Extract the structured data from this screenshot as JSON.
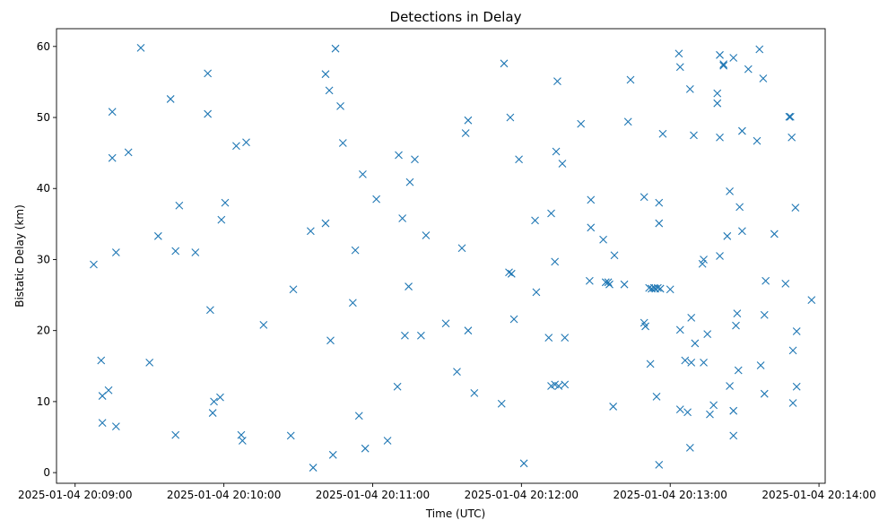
{
  "chart_data": {
    "type": "scatter",
    "title": "Detections in Delay",
    "xlabel": "Time (UTC)",
    "ylabel": "Bistatic Delay (km)",
    "marker": "x",
    "color": "#1f77b4",
    "grid": false,
    "legend": "none",
    "xlim": [
      -7.5,
      302.5
    ],
    "ylim": [
      -1.5,
      62.5
    ],
    "x_ticks": [
      {
        "value": 0,
        "label": "2025-01-04 20:09:00"
      },
      {
        "value": 60,
        "label": "2025-01-04 20:10:00"
      },
      {
        "value": 120,
        "label": "2025-01-04 20:11:00"
      },
      {
        "value": 180,
        "label": "2025-01-04 20:12:00"
      },
      {
        "value": 240,
        "label": "2025-01-04 20:13:00"
      },
      {
        "value": 300,
        "label": "2025-01-04 20:14:00"
      }
    ],
    "y_ticks": [
      {
        "value": 0,
        "label": "0"
      },
      {
        "value": 10,
        "label": "10"
      },
      {
        "value": 20,
        "label": "20"
      },
      {
        "value": 30,
        "label": "30"
      },
      {
        "value": 40,
        "label": "40"
      },
      {
        "value": 50,
        "label": "50"
      },
      {
        "value": 60,
        "label": "60"
      }
    ],
    "x_unit": "seconds after 2025-01-04 20:09:00 UTC",
    "points": [
      [
        7.5,
        29.3
      ],
      [
        10.5,
        15.8
      ],
      [
        11,
        10.8
      ],
      [
        11,
        7
      ],
      [
        13.5,
        11.6
      ],
      [
        15,
        50.8
      ],
      [
        15,
        44.3
      ],
      [
        16.5,
        31
      ],
      [
        16.5,
        6.5
      ],
      [
        21.5,
        45.1
      ],
      [
        26.5,
        59.8
      ],
      [
        30,
        15.5
      ],
      [
        33.5,
        33.3
      ],
      [
        38.5,
        52.6
      ],
      [
        40.5,
        31.2
      ],
      [
        40.5,
        5.3
      ],
      [
        42,
        37.6
      ],
      [
        48.5,
        31
      ],
      [
        53.5,
        56.2
      ],
      [
        53.5,
        50.5
      ],
      [
        54.5,
        22.9
      ],
      [
        55.5,
        8.4
      ],
      [
        56,
        10
      ],
      [
        58.5,
        10.6
      ],
      [
        59,
        35.6
      ],
      [
        60.5,
        38
      ],
      [
        65,
        46
      ],
      [
        67,
        5.3
      ],
      [
        67.5,
        4.5
      ],
      [
        69,
        46.5
      ],
      [
        76,
        20.8
      ],
      [
        87,
        5.2
      ],
      [
        88,
        25.8
      ],
      [
        95,
        34
      ],
      [
        96,
        0.7
      ],
      [
        101,
        56.1
      ],
      [
        101,
        35.1
      ],
      [
        102.5,
        53.8
      ],
      [
        103,
        18.6
      ],
      [
        104,
        2.5
      ],
      [
        105,
        59.7
      ],
      [
        107,
        51.6
      ],
      [
        108,
        46.4
      ],
      [
        112,
        23.9
      ],
      [
        113,
        31.3
      ],
      [
        114.5,
        8
      ],
      [
        116,
        42
      ],
      [
        117,
        3.4
      ],
      [
        121.5,
        38.5
      ],
      [
        126,
        4.5
      ],
      [
        130,
        12.1
      ],
      [
        130.5,
        44.7
      ],
      [
        132,
        35.8
      ],
      [
        133,
        19.3
      ],
      [
        134.5,
        26.2
      ],
      [
        135,
        40.9
      ],
      [
        137,
        44.1
      ],
      [
        139.5,
        19.3
      ],
      [
        141.5,
        33.4
      ],
      [
        149.5,
        21
      ],
      [
        154,
        14.2
      ],
      [
        156,
        31.6
      ],
      [
        157.5,
        47.8
      ],
      [
        158.5,
        49.6
      ],
      [
        158.5,
        20
      ],
      [
        161,
        11.2
      ],
      [
        172,
        9.7
      ],
      [
        173,
        57.6
      ],
      [
        175,
        28.2
      ],
      [
        175.5,
        50
      ],
      [
        176,
        28
      ],
      [
        177,
        21.6
      ],
      [
        179,
        44.1
      ],
      [
        181,
        1.3
      ],
      [
        185.5,
        35.5
      ],
      [
        186,
        25.4
      ],
      [
        191,
        19
      ],
      [
        192,
        36.5
      ],
      [
        192,
        12.2
      ],
      [
        193.5,
        12.4
      ],
      [
        193.5,
        29.7
      ],
      [
        194,
        45.2
      ],
      [
        194.5,
        55.1
      ],
      [
        195,
        12.2
      ],
      [
        196.5,
        43.5
      ],
      [
        197.5,
        19
      ],
      [
        197.5,
        12.4
      ],
      [
        204,
        49.1
      ],
      [
        207.5,
        27
      ],
      [
        208,
        38.4
      ],
      [
        208,
        34.5
      ],
      [
        213,
        32.8
      ],
      [
        214,
        26.8
      ],
      [
        215,
        26.8
      ],
      [
        215.5,
        26.5
      ],
      [
        217,
        9.3
      ],
      [
        217.5,
        30.6
      ],
      [
        221.5,
        26.5
      ],
      [
        223,
        49.4
      ],
      [
        224,
        55.3
      ],
      [
        229.5,
        38.8
      ],
      [
        229.5,
        21.1
      ],
      [
        230,
        20.6
      ],
      [
        231.5,
        26
      ],
      [
        232,
        15.3
      ],
      [
        232.5,
        25.9
      ],
      [
        233.5,
        26
      ],
      [
        234,
        25.9
      ],
      [
        234.5,
        10.7
      ],
      [
        235,
        26
      ],
      [
        235.5,
        38
      ],
      [
        235.5,
        35.1
      ],
      [
        235.5,
        1.1
      ],
      [
        236,
        25.9
      ],
      [
        237,
        47.7
      ],
      [
        240,
        25.8
      ],
      [
        243.5,
        59
      ],
      [
        244,
        57.1
      ],
      [
        244,
        20.1
      ],
      [
        244,
        8.9
      ],
      [
        246,
        15.8
      ],
      [
        247,
        8.5
      ],
      [
        248,
        54
      ],
      [
        248,
        3.5
      ],
      [
        248.5,
        21.8
      ],
      [
        248.5,
        15.5
      ],
      [
        249.5,
        47.5
      ],
      [
        250,
        18.2
      ],
      [
        253,
        29.4
      ],
      [
        253.5,
        30
      ],
      [
        253.5,
        15.5
      ],
      [
        255,
        19.5
      ],
      [
        256,
        8.2
      ],
      [
        257.5,
        9.5
      ],
      [
        259,
        53.4
      ],
      [
        259,
        52
      ],
      [
        260,
        58.8
      ],
      [
        260,
        30.5
      ],
      [
        260,
        47.2
      ],
      [
        261.5,
        57.3
      ],
      [
        261.5,
        57.5
      ],
      [
        263,
        33.3
      ],
      [
        264,
        12.2
      ],
      [
        264,
        39.6
      ],
      [
        265.5,
        58.4
      ],
      [
        265.5,
        8.7
      ],
      [
        265.5,
        5.2
      ],
      [
        266.5,
        20.7
      ],
      [
        267,
        22.4
      ],
      [
        267.5,
        14.4
      ],
      [
        268,
        37.4
      ],
      [
        269,
        34
      ],
      [
        269,
        48.1
      ],
      [
        271.5,
        56.8
      ],
      [
        275,
        46.7
      ],
      [
        276,
        59.6
      ],
      [
        276.5,
        15.1
      ],
      [
        277.5,
        55.5
      ],
      [
        278,
        22.2
      ],
      [
        278,
        11.1
      ],
      [
        278.5,
        27
      ],
      [
        282,
        33.6
      ],
      [
        286.5,
        26.6
      ],
      [
        288,
        50.1
      ],
      [
        288.5,
        50.1
      ],
      [
        289,
        47.2
      ],
      [
        289.5,
        17.2
      ],
      [
        289.5,
        9.8
      ],
      [
        290.5,
        37.3
      ],
      [
        291,
        19.9
      ],
      [
        291,
        12.1
      ],
      [
        297,
        24.3
      ]
    ]
  }
}
